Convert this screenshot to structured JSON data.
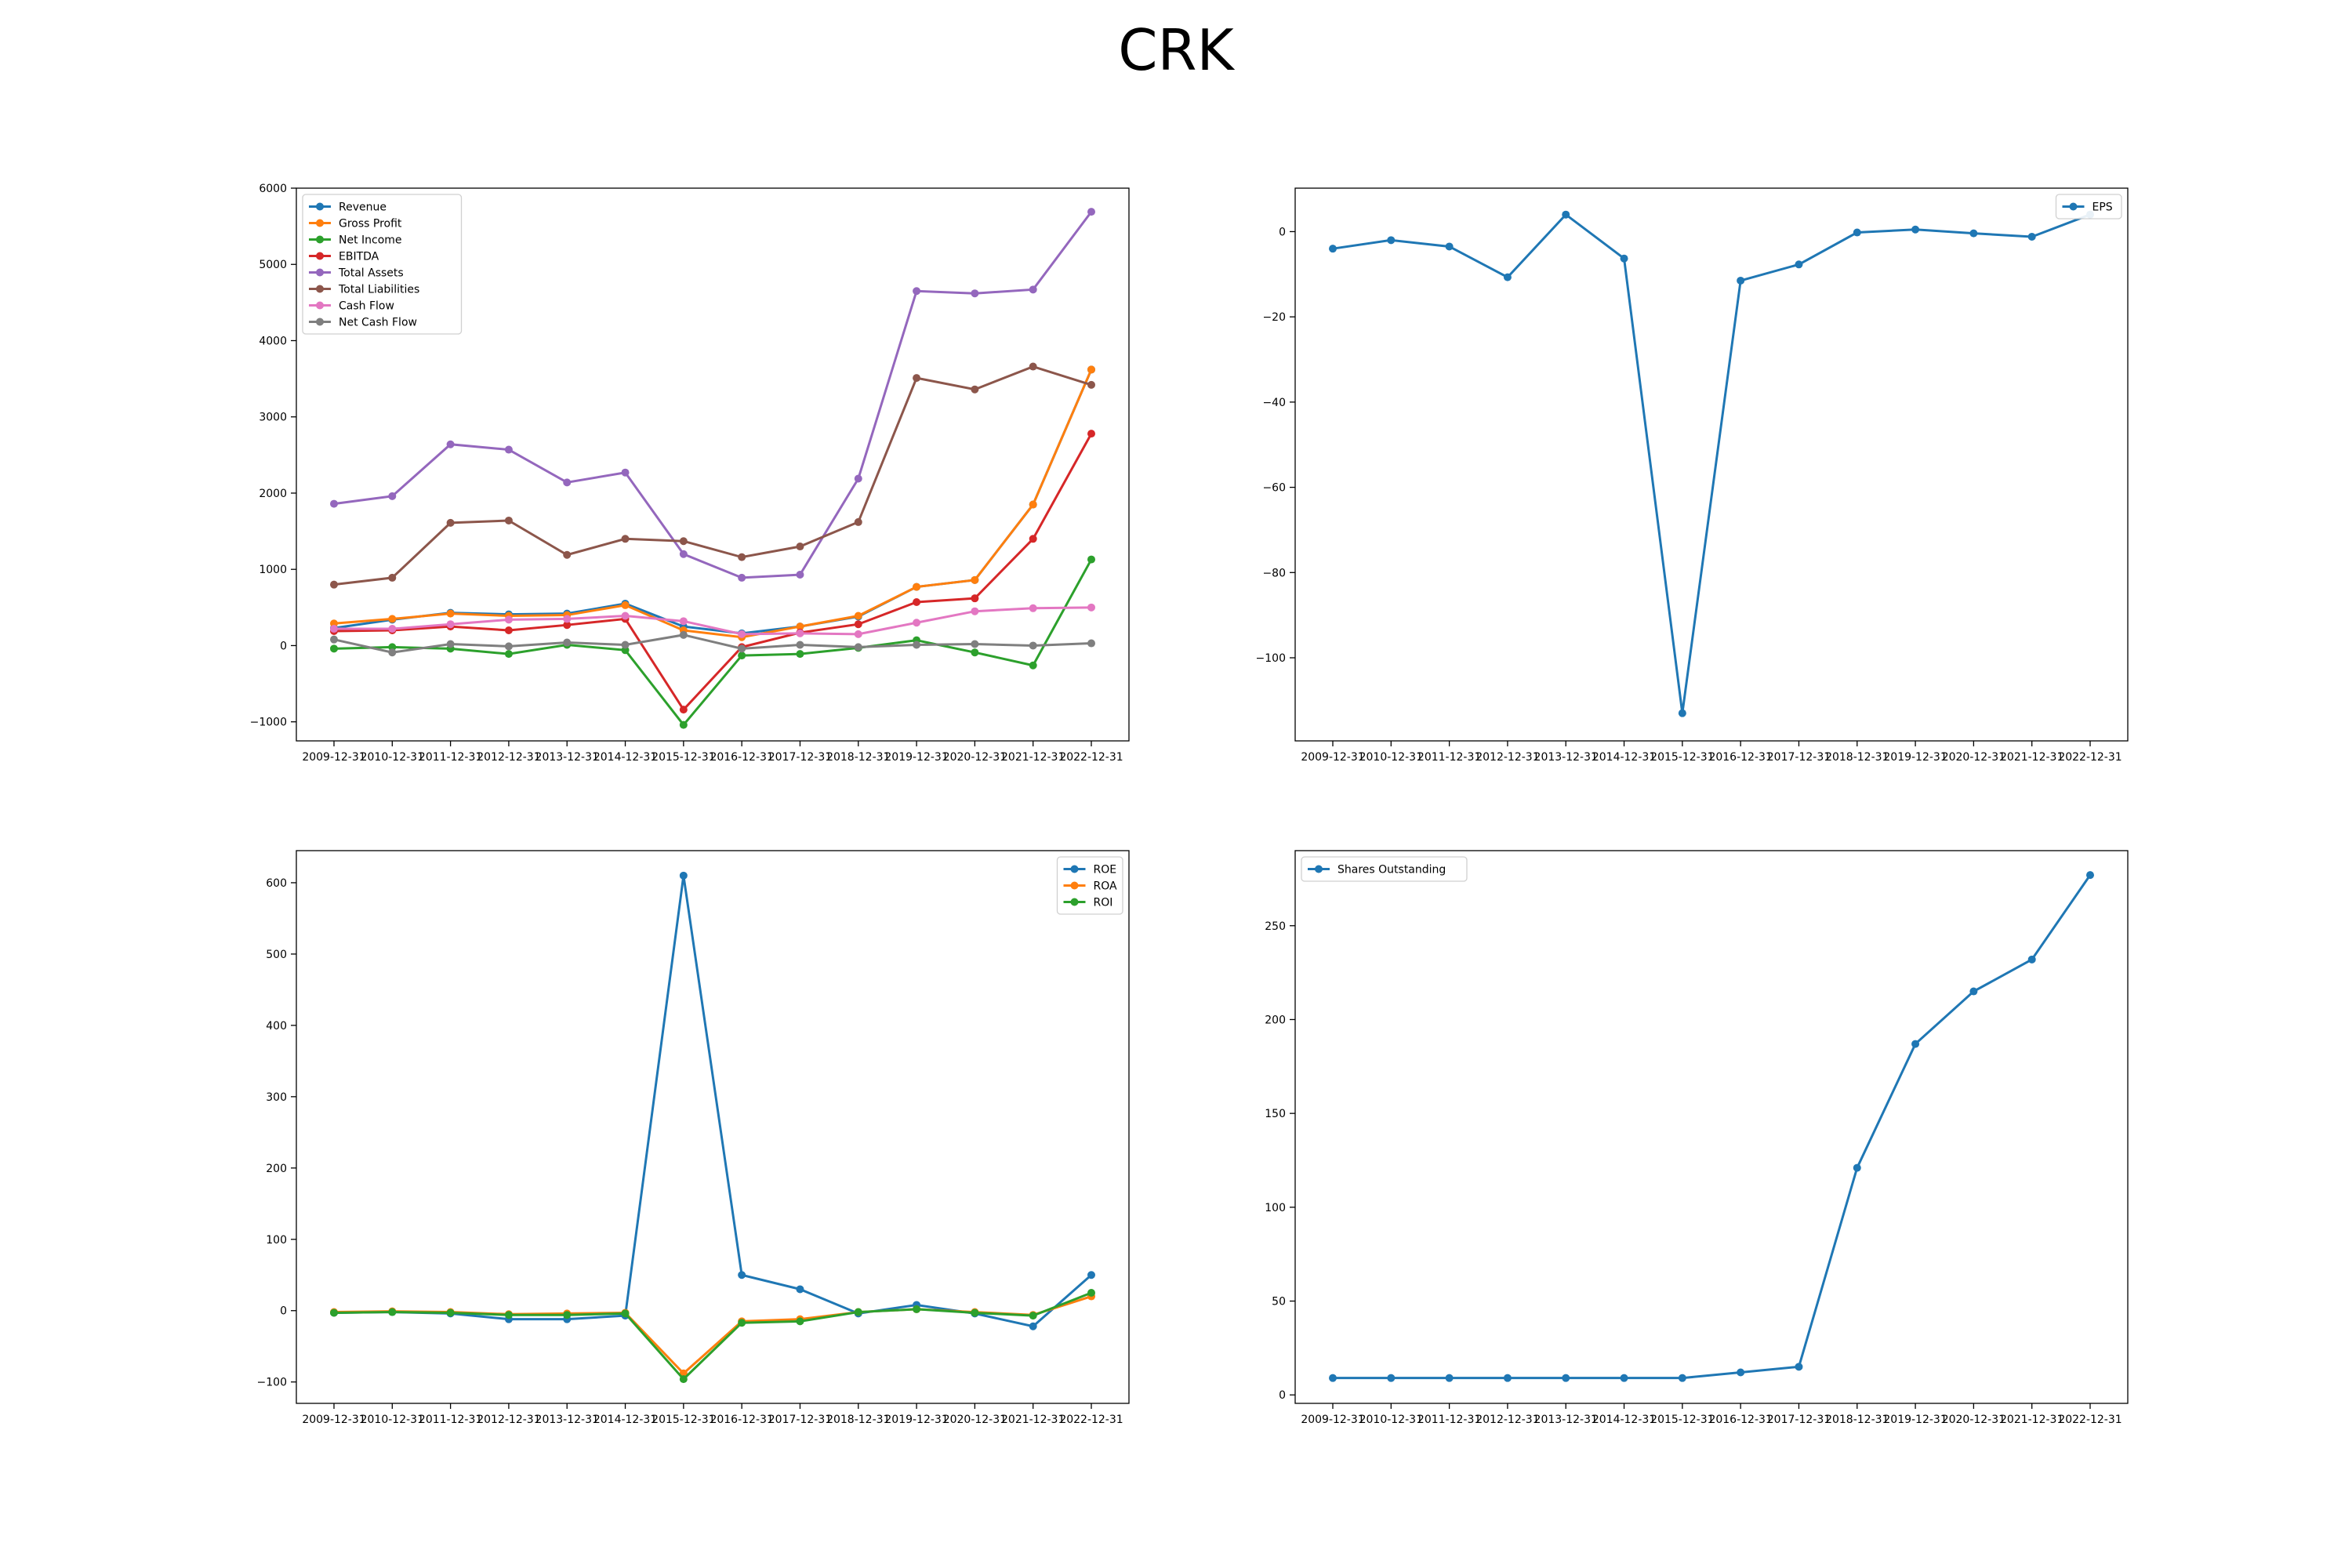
{
  "figure": {
    "title": "CRK"
  },
  "chart_data": [
    {
      "type": "line",
      "x": [
        "2009-12-31",
        "2010-12-31",
        "2011-12-31",
        "2012-12-31",
        "2013-12-31",
        "2014-12-31",
        "2015-12-31",
        "2016-12-31",
        "2017-12-31",
        "2018-12-31",
        "2019-12-31",
        "2020-12-31",
        "2021-12-31",
        "2022-12-31"
      ],
      "ylim": [
        -1250,
        6000
      ],
      "yticks": [
        -1000,
        0,
        1000,
        2000,
        3000,
        4000,
        5000,
        6000
      ],
      "legend": "upper left",
      "series": [
        {
          "name": "Revenue",
          "color": "#1f77b4",
          "values": [
            230,
            340,
            430,
            410,
            420,
            550,
            250,
            160,
            250,
            380,
            770,
            860,
            1850,
            3620
          ]
        },
        {
          "name": "Gross Profit",
          "color": "#ff7f0e",
          "values": [
            290,
            350,
            420,
            390,
            400,
            530,
            200,
            110,
            250,
            390,
            770,
            860,
            1850,
            3620
          ]
        },
        {
          "name": "Net Income",
          "color": "#2ca02c",
          "values": [
            -40,
            -20,
            -40,
            -110,
            10,
            -60,
            -1040,
            -130,
            -110,
            -30,
            70,
            -90,
            -260,
            1130
          ]
        },
        {
          "name": "EBITDA",
          "color": "#d62728",
          "values": [
            190,
            200,
            250,
            200,
            270,
            350,
            -840,
            -20,
            170,
            280,
            570,
            620,
            1400,
            2780
          ]
        },
        {
          "name": "Total Assets",
          "color": "#9467bd",
          "values": [
            1860,
            1960,
            2640,
            2570,
            2140,
            2270,
            1200,
            890,
            930,
            2190,
            4650,
            4620,
            4670,
            5690
          ]
        },
        {
          "name": "Total Liabilities",
          "color": "#8c564b",
          "values": [
            800,
            890,
            1610,
            1640,
            1190,
            1400,
            1370,
            1160,
            1300,
            1620,
            3510,
            3360,
            3660,
            3420
          ]
        },
        {
          "name": "Cash Flow",
          "color": "#e377c2",
          "values": [
            220,
            220,
            280,
            340,
            350,
            390,
            320,
            150,
            160,
            150,
            300,
            450,
            490,
            500
          ]
        },
        {
          "name": "Net Cash Flow",
          "color": "#7f7f7f",
          "values": [
            80,
            -90,
            20,
            -10,
            40,
            10,
            140,
            -40,
            10,
            -20,
            10,
            20,
            0,
            30
          ]
        }
      ]
    },
    {
      "type": "line",
      "x": [
        "2009-12-31",
        "2010-12-31",
        "2011-12-31",
        "2012-12-31",
        "2013-12-31",
        "2014-12-31",
        "2015-12-31",
        "2016-12-31",
        "2017-12-31",
        "2018-12-31",
        "2019-12-31",
        "2020-12-31",
        "2021-12-31",
        "2022-12-31"
      ],
      "ylim": [
        -119.5,
        10.2
      ],
      "yticks": [
        -100,
        -80,
        -60,
        -40,
        -20,
        0
      ],
      "legend": "upper right",
      "series": [
        {
          "name": "EPS",
          "color": "#1f77b4",
          "values": [
            -4,
            -2,
            -3.5,
            -10.7,
            4,
            -6.3,
            -113,
            -11.5,
            -7.7,
            -0.2,
            0.5,
            -0.4,
            -1.2,
            4
          ]
        }
      ]
    },
    {
      "type": "line",
      "x": [
        "2009-12-31",
        "2010-12-31",
        "2011-12-31",
        "2012-12-31",
        "2013-12-31",
        "2014-12-31",
        "2015-12-31",
        "2016-12-31",
        "2017-12-31",
        "2018-12-31",
        "2019-12-31",
        "2020-12-31",
        "2021-12-31",
        "2022-12-31"
      ],
      "ylim": [
        -130,
        645
      ],
      "yticks": [
        -100,
        0,
        100,
        200,
        300,
        400,
        500,
        600
      ],
      "legend": "upper right",
      "series": [
        {
          "name": "ROE",
          "color": "#1f77b4",
          "values": [
            -3,
            -2,
            -4,
            -12,
            -12,
            -7,
            610,
            50,
            30,
            -4,
            8,
            -4,
            -22,
            50
          ]
        },
        {
          "name": "ROA",
          "color": "#ff7f0e",
          "values": [
            -2,
            -1,
            -2,
            -5,
            -4,
            -3,
            -88,
            -15,
            -12,
            -2,
            2,
            -2,
            -6,
            20
          ]
        },
        {
          "name": "ROI",
          "color": "#2ca02c",
          "values": [
            -3,
            -2,
            -3,
            -6,
            -6,
            -4,
            -96,
            -17,
            -15,
            -2,
            2,
            -3,
            -7,
            25
          ]
        }
      ]
    },
    {
      "type": "line",
      "x": [
        "2009-12-31",
        "2010-12-31",
        "2011-12-31",
        "2012-12-31",
        "2013-12-31",
        "2014-12-31",
        "2015-12-31",
        "2016-12-31",
        "2017-12-31",
        "2018-12-31",
        "2019-12-31",
        "2020-12-31",
        "2021-12-31",
        "2022-12-31"
      ],
      "ylim": [
        -4.5,
        290
      ],
      "yticks": [
        0,
        50,
        100,
        150,
        200,
        250
      ],
      "legend": "upper left",
      "series": [
        {
          "name": "Shares Outstanding",
          "color": "#1f77b4",
          "values": [
            9,
            9,
            9,
            9,
            9,
            9,
            9,
            12,
            15,
            121,
            187,
            215,
            232,
            277
          ]
        }
      ]
    }
  ]
}
